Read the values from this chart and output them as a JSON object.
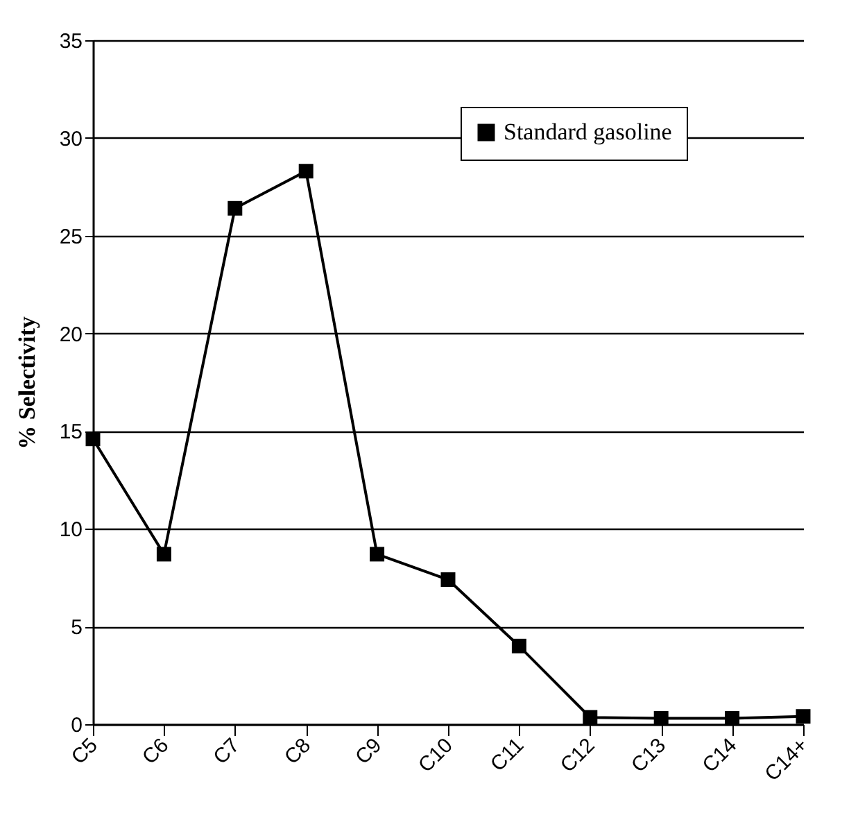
{
  "chart_data": {
    "type": "line",
    "ylabel": "% Selectivity",
    "categories": [
      "C5",
      "C6",
      "C7",
      "C8",
      "C9",
      "C10",
      "C11",
      "C12",
      "C13",
      "C14",
      "C14+"
    ],
    "series": [
      {
        "name": "Standard gasoline",
        "color": "#000000",
        "values": [
          14.6,
          8.7,
          26.4,
          28.3,
          8.7,
          7.4,
          4.0,
          0.35,
          0.3,
          0.3,
          0.4
        ]
      }
    ],
    "ylim": [
      0,
      35
    ],
    "yticks": [
      0,
      5,
      10,
      15,
      20,
      25,
      30,
      35
    ],
    "grid": "y",
    "legend": "top right",
    "marker": "square",
    "line_style": "solid"
  }
}
